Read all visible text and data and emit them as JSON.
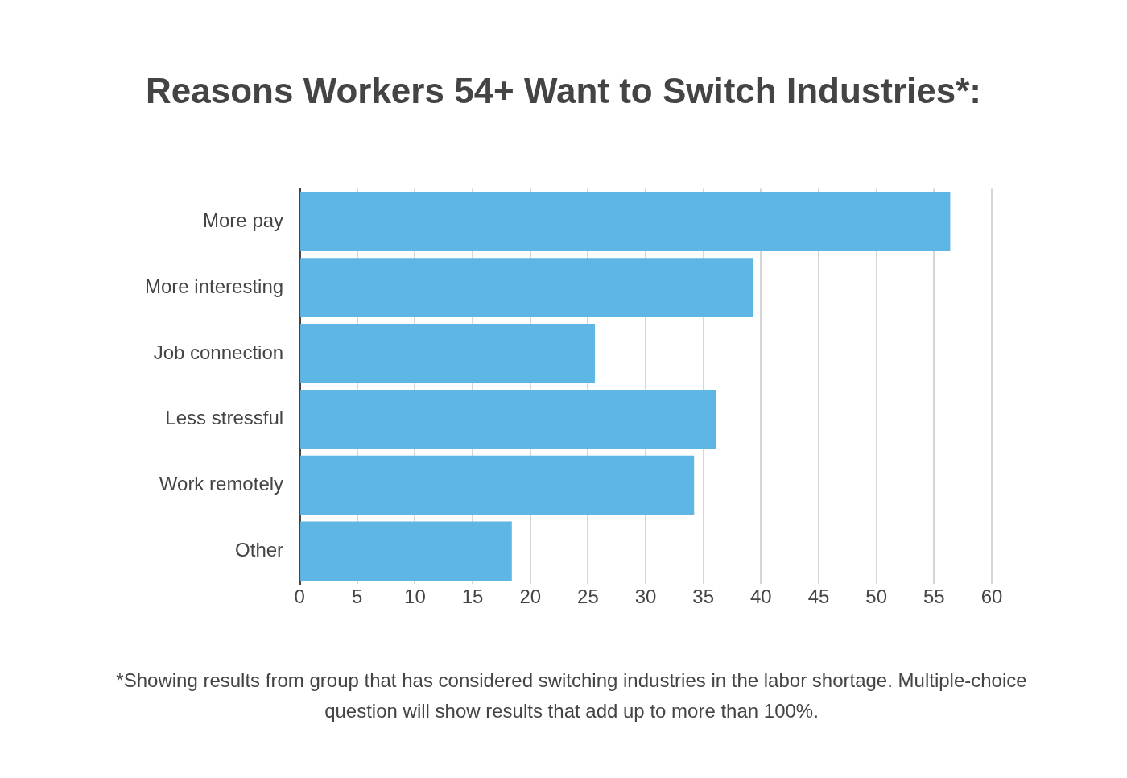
{
  "chart_data": {
    "type": "bar",
    "orientation": "horizontal",
    "title": "Reasons Workers 54+ Want to Switch Industries*:",
    "categories": [
      "More pay",
      "More interesting",
      "Job connection",
      "Less stressful",
      "Work remotely",
      "Other"
    ],
    "values": [
      56.4,
      39.3,
      25.6,
      36.1,
      34.2,
      18.4
    ],
    "color": "#5eb6e4",
    "xlim": [
      0,
      60
    ],
    "xticks": [
      0,
      5,
      10,
      15,
      20,
      25,
      30,
      35,
      40,
      45,
      50,
      55,
      60
    ],
    "grid": "x",
    "legend": false,
    "annotations": [
      "*Showing results from group that has considered switching industries in the labor shortage. Multiple-choice question will show results that add up to more than 100%."
    ]
  }
}
